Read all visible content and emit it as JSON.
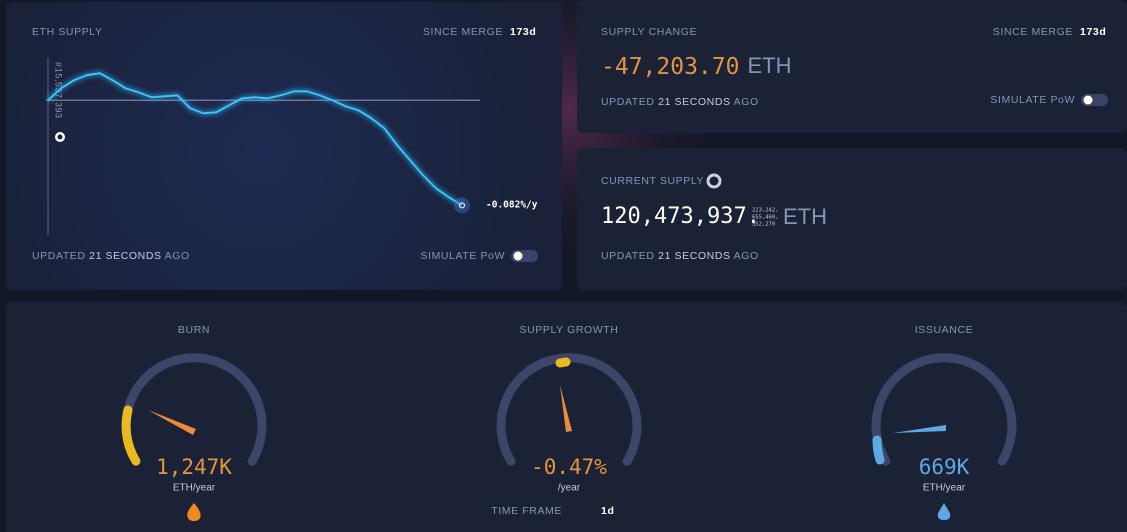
{
  "supply_panel": {
    "title": "ETH SUPPLY",
    "since_label": "SINCE MERGE",
    "since_value": "173d",
    "block_label": "#15,537,393",
    "rate_label": "-0.082%/y",
    "updated": {
      "prefix": "UPDATED",
      "value": "21 SECONDS",
      "suffix": "AGO"
    },
    "simulate_label": "SIMULATE PoW",
    "chart": {
      "type": "line",
      "values": [
        0,
        5400,
        9000,
        11250,
        12150,
        9000,
        5400,
        3600,
        1350,
        1800,
        2250,
        -3600,
        -5850,
        -5400,
        -2250,
        900,
        1350,
        900,
        2250,
        4050,
        4050,
        2250,
        0,
        -2700,
        -4500,
        -8100,
        -12600,
        -20250,
        -27000,
        -33750,
        -39600,
        -43650,
        -47204
      ],
      "ylim": [
        -52000,
        19000
      ]
    }
  },
  "change_panel": {
    "title": "SUPPLY CHANGE",
    "since_label": "SINCE MERGE",
    "since_value": "173d",
    "value": "-47,203.70",
    "unit": "ETH",
    "updated": {
      "prefix": "UPDATED",
      "value": "21 SECONDS",
      "suffix": "AGO"
    },
    "simulate_label": "SIMULATE PoW"
  },
  "current_panel": {
    "title": "CURRENT SUPPLY",
    "value": "120,473,937.",
    "decimals": [
      "223,242,",
      "655,460,",
      "352,270"
    ],
    "unit": "ETH",
    "updated": {
      "prefix": "UPDATED",
      "value": "21 SECONDS",
      "suffix": "AGO"
    }
  },
  "gauges": [
    {
      "title": "BURN",
      "value": "1,247K",
      "unit": "ETH/year"
    },
    {
      "title": "SUPPLY GROWTH",
      "value": "-0.47%",
      "unit": "/year"
    },
    {
      "title": "ISSUANCE",
      "value": "669K",
      "unit": "ETH/year"
    }
  ],
  "time_frame": {
    "label": "TIME FRAME",
    "value": "1d"
  }
}
